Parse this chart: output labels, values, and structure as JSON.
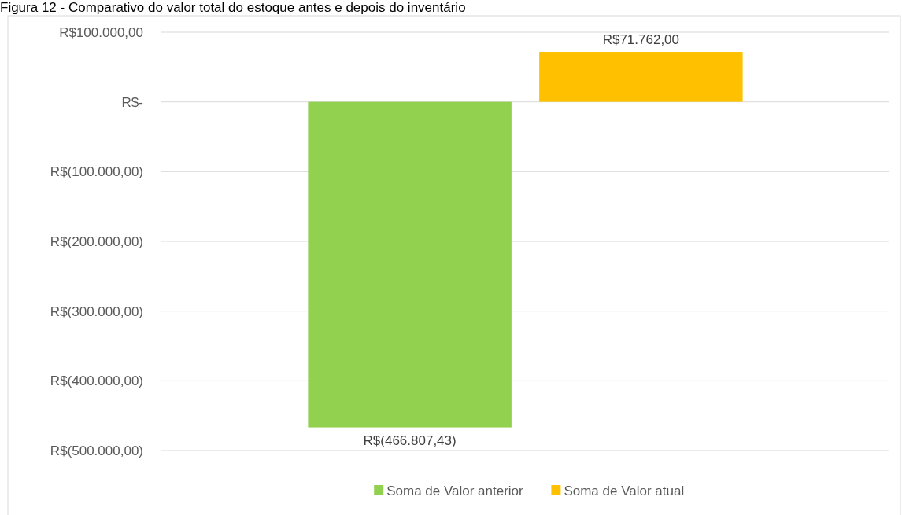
{
  "chart_data": {
    "type": "bar",
    "title": "Figura 12 - Comparativo do valor total do estoque antes e depois do inventário",
    "categories": [
      null
    ],
    "series": [
      {
        "name": "Soma de Valor anterior",
        "color": "#92d050",
        "values": [
          -466807.43
        ],
        "value_labels": [
          "R$(466.807,43)"
        ]
      },
      {
        "name": "Soma de Valor atual",
        "color": "#ffc000",
        "values": [
          71762
        ],
        "value_labels": [
          "R$71.762,00"
        ]
      }
    ],
    "ylim": [
      -500000,
      100000
    ],
    "yticks": [
      {
        "value": 100000,
        "label": "R$100.000,00"
      },
      {
        "value": 0,
        "label": "R$-"
      },
      {
        "value": -100000,
        "label": "R$(100.000,00)"
      },
      {
        "value": -200000,
        "label": "R$(200.000,00)"
      },
      {
        "value": -300000,
        "label": "R$(300.000,00)"
      },
      {
        "value": -400000,
        "label": "R$(400.000,00)"
      },
      {
        "value": -500000,
        "label": "R$(500.000,00)"
      }
    ],
    "grid": "y",
    "legend": "bottom"
  }
}
